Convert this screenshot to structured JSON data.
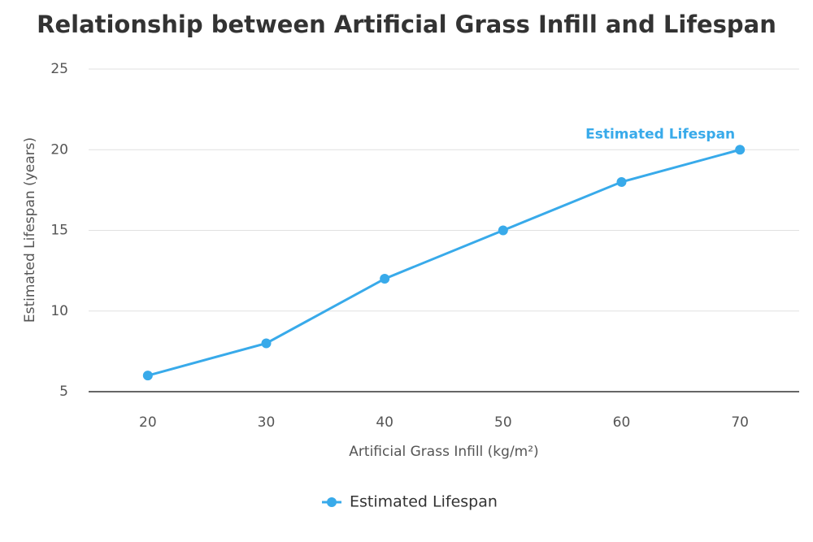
{
  "chart_data": {
    "type": "line",
    "title": "Relationship between Artificial Grass Infill and Lifespan",
    "x_label": "Artificial Grass Infill (kg/m²)",
    "y_label": "Estimated Lifespan (years)",
    "categories": [
      "20",
      "30",
      "40",
      "50",
      "60",
      "70"
    ],
    "series": [
      {
        "name": "Estimated Lifespan",
        "color": "#38aaea",
        "values": [
          6,
          8,
          12,
          15,
          18,
          20
        ]
      }
    ],
    "ylim": [
      5,
      25
    ],
    "yticks": [
      5,
      10,
      15,
      20,
      25
    ],
    "grid": true,
    "legend": "bottom"
  }
}
